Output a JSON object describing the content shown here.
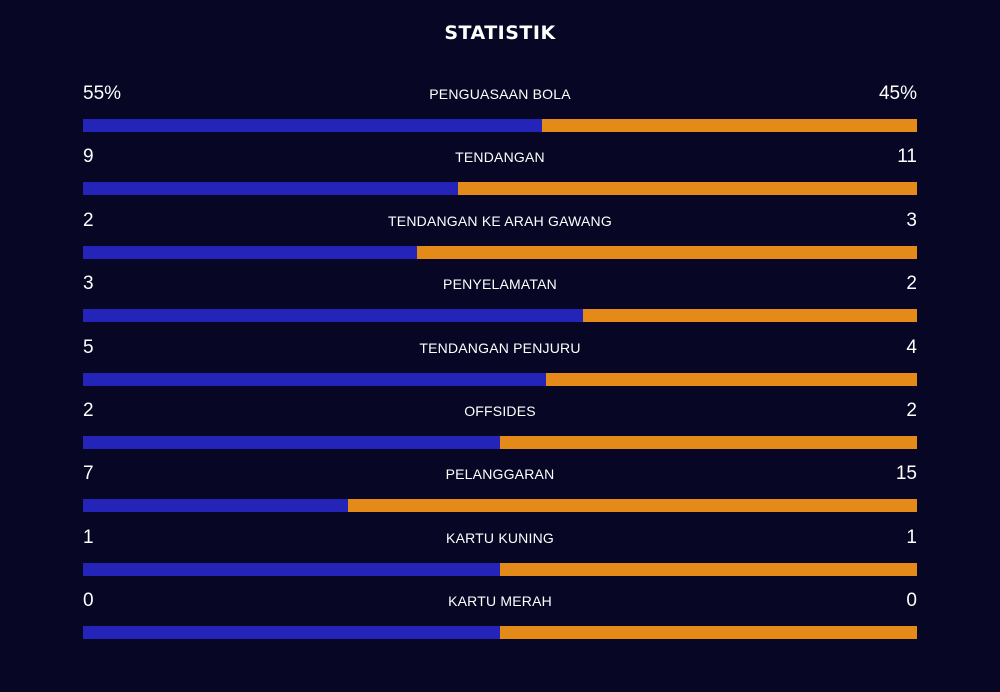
{
  "title": "STATISTIK",
  "colors": {
    "background": "#070624",
    "home": "#2524b8",
    "away": "#e48a19"
  },
  "chart_data": {
    "type": "bar",
    "title": "STATISTIK",
    "categories": [
      "PENGUASAAN BOLA",
      "TENDANGAN",
      "TENDANGAN KE ARAH GAWANG",
      "PENYELAMATAN",
      "TENDANGAN PENJURU",
      "OFFSIDES",
      "PELANGGARAN",
      "KARTU KUNING",
      "KARTU MERAH"
    ],
    "stats": [
      {
        "label": "PENGUASAAN BOLA",
        "home_display": "55%",
        "away_display": "45%",
        "home": 55,
        "away": 45
      },
      {
        "label": "TENDANGAN",
        "home_display": "9",
        "away_display": "11",
        "home": 9,
        "away": 11
      },
      {
        "label": "TENDANGAN KE ARAH GAWANG",
        "home_display": "2",
        "away_display": "3",
        "home": 2,
        "away": 3
      },
      {
        "label": "PENYELAMATAN",
        "home_display": "3",
        "away_display": "2",
        "home": 3,
        "away": 2
      },
      {
        "label": "TENDANGAN PENJURU",
        "home_display": "5",
        "away_display": "4",
        "home": 5,
        "away": 4
      },
      {
        "label": "OFFSIDES",
        "home_display": "2",
        "away_display": "2",
        "home": 2,
        "away": 2
      },
      {
        "label": "PELANGGARAN",
        "home_display": "7",
        "away_display": "15",
        "home": 7,
        "away": 15
      },
      {
        "label": "KARTU KUNING",
        "home_display": "1",
        "away_display": "1",
        "home": 1,
        "away": 1
      },
      {
        "label": "KARTU MERAH",
        "home_display": "0",
        "away_display": "0",
        "home": 0,
        "away": 0
      }
    ]
  }
}
